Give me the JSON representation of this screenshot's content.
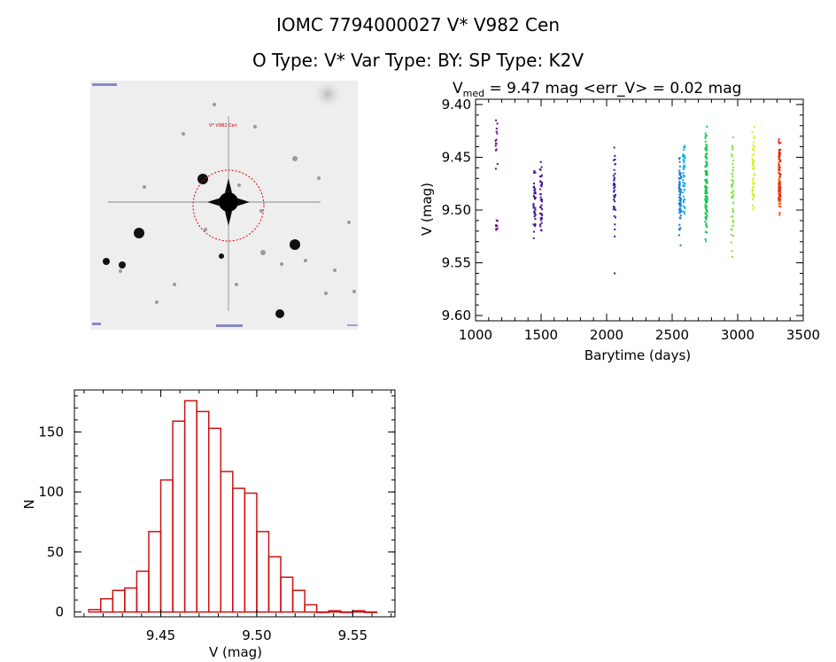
{
  "header": {
    "title": "IOMC 7794000027    V* V982 Cen",
    "subtitle": "O Type: V*  Var Type: BY:  SP Type: K2V"
  },
  "sky_image": {
    "label_top": "V* V982 Cen"
  },
  "chart_data": [
    {
      "type": "scatter",
      "title_prefix": "V",
      "title_sub": "med",
      "title_rest": " = 9.47 mag <err_V> = 0.02 mag",
      "xlabel": "Barytime (days)",
      "ylabel": "V (mag)",
      "xlim": [
        1000,
        3500
      ],
      "ylim": [
        9.6,
        9.4
      ],
      "y_inverted": true,
      "xticks": [
        "1000",
        "1500",
        "2000",
        "2500",
        "3000",
        "3500"
      ],
      "yticks": [
        "9.40",
        "9.45",
        "9.50",
        "9.55",
        "9.60"
      ],
      "groups": [
        {
          "x": 1160,
          "ymin": 9.41,
          "ymax": 9.462,
          "color": "#6a0d83",
          "n": 14
        },
        {
          "x": 1160,
          "ymin": 9.505,
          "ymax": 9.528,
          "color": "#6a0d83",
          "n": 8
        },
        {
          "x": 1450,
          "ymin": 9.455,
          "ymax": 9.535,
          "color": "#4b1590",
          "n": 40
        },
        {
          "x": 1500,
          "ymin": 9.452,
          "ymax": 9.53,
          "color": "#4b1590",
          "n": 40
        },
        {
          "x": 2060,
          "ymin": 9.438,
          "ymax": 9.528,
          "color": "#3a1a9a",
          "n": 38
        },
        {
          "x": 2060,
          "ymin": 9.56,
          "ymax": 9.56,
          "color": "#3a1a9a",
          "n": 1
        },
        {
          "x": 2560,
          "ymin": 9.445,
          "ymax": 9.535,
          "color": "#1e7ad6",
          "n": 70
        },
        {
          "x": 2590,
          "ymin": 9.43,
          "ymax": 9.51,
          "color": "#19b0e8",
          "n": 50
        },
        {
          "x": 2760,
          "ymin": 9.418,
          "ymax": 9.535,
          "color": "#12c84a",
          "n": 120
        },
        {
          "x": 2960,
          "ymin": 9.425,
          "ymax": 9.545,
          "color": "#7ee83a",
          "n": 50
        },
        {
          "x": 3120,
          "ymin": 9.418,
          "ymax": 9.505,
          "color": "#d8ef2a",
          "n": 50
        },
        {
          "x": 3320,
          "ymin": 9.44,
          "ymax": 9.512,
          "color": "#f0641c",
          "n": 70
        },
        {
          "x": 3320,
          "ymin": 9.43,
          "ymax": 9.5,
          "color": "#e02818",
          "n": 40
        }
      ]
    },
    {
      "type": "bar",
      "subtype": "histogram",
      "xlabel": "V (mag)",
      "ylabel": "N",
      "xlim": [
        9.405,
        9.572
      ],
      "ylim": [
        0,
        185
      ],
      "xticks": [
        "9.45",
        "9.50",
        "9.55"
      ],
      "yticks": [
        "0",
        "50",
        "100",
        "150"
      ],
      "bin_width": 0.00625,
      "bin_starts": [
        9.4125,
        9.41875,
        9.425,
        9.43125,
        9.4375,
        9.44375,
        9.45,
        9.45625,
        9.4625,
        9.46875,
        9.475,
        9.48125,
        9.4875,
        9.49375,
        9.5,
        9.50625,
        9.5125,
        9.51875,
        9.525,
        9.53125,
        9.5375,
        9.54375,
        9.55,
        9.55625
      ],
      "values": [
        2,
        11,
        18,
        20,
        34,
        67,
        110,
        159,
        176,
        167,
        153,
        117,
        103,
        99,
        67,
        46,
        29,
        18,
        6,
        0,
        1,
        0,
        1,
        0
      ],
      "bar_color": "#cc1111"
    }
  ]
}
